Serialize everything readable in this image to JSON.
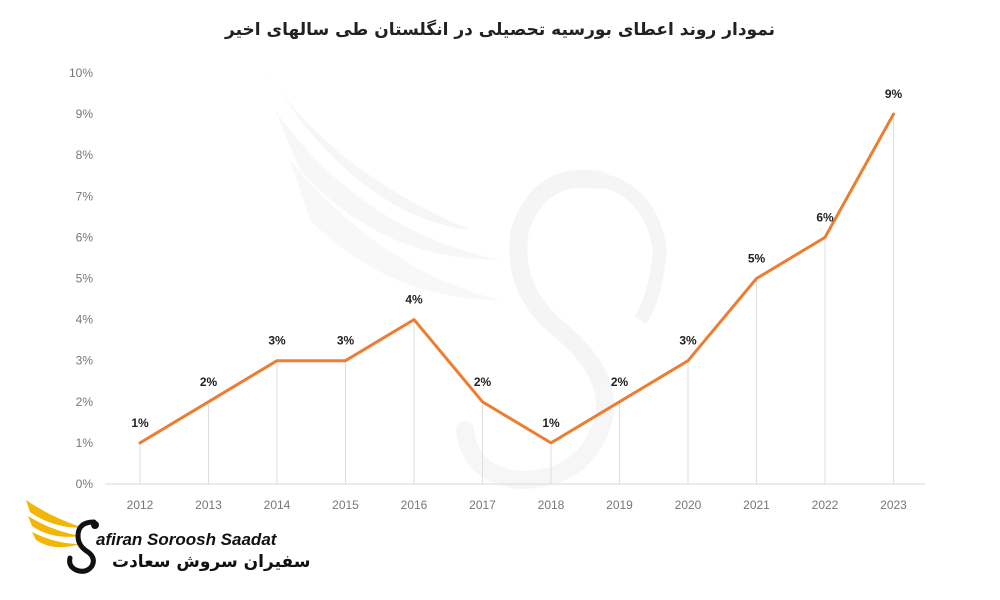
{
  "title": "نمودار روند اعطای بورسیه تحصیلی در انگلستان طی سالهای اخیر",
  "chart_data": {
    "type": "line",
    "title": "نمودار روند اعطای بورسیه تحصیلی در انگلستان طی سالهای اخیر",
    "xlabel": "",
    "ylabel": "",
    "categories": [
      "2012",
      "2013",
      "2014",
      "2015",
      "2016",
      "2017",
      "2018",
      "2019",
      "2020",
      "2021",
      "2022",
      "2023"
    ],
    "series": [
      {
        "values": [
          1,
          2,
          3,
          3,
          4,
          2,
          1,
          2,
          3,
          5,
          6,
          9
        ],
        "labels": [
          "1%",
          "2%",
          "3%",
          "3%",
          "4%",
          "2%",
          "1%",
          "2%",
          "3%",
          "5%",
          "6%",
          "9%"
        ],
        "color": "#ED7D31"
      }
    ],
    "ylim": [
      0,
      10
    ],
    "yticks": [
      "0%",
      "1%",
      "2%",
      "3%",
      "4%",
      "5%",
      "6%",
      "7%",
      "8%",
      "9%",
      "10%"
    ],
    "grid": "vertical",
    "legend": "none"
  },
  "logo": {
    "text_en": "afiran Soroosh Saadat",
    "text_fa": "سفیران سروش سعادت",
    "accent_color": "#F2B705"
  }
}
